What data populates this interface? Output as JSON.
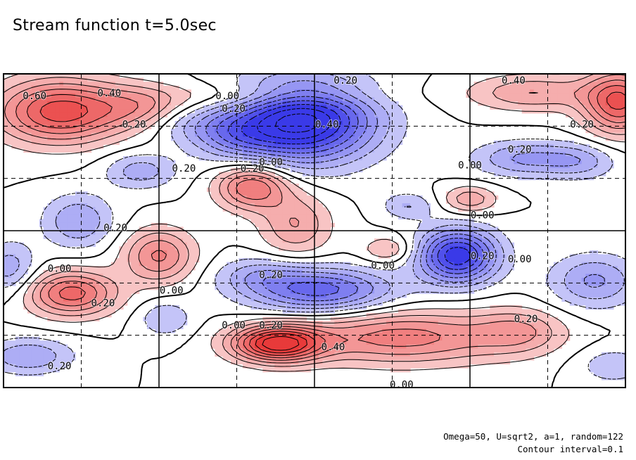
{
  "chart_data": {
    "type": "contour",
    "title": "Stream function t=5.0sec",
    "annotation": [
      "Omega=50, U=sqrt2, a=1, random=122",
      "Contour interval=0.1"
    ],
    "contour_interval": 0.1,
    "color_scheme": {
      "positive": "#e83a3a",
      "negative": "#3a3ae8",
      "zero": "#ffffff"
    },
    "negative_contour_style": "dashed",
    "grid": true,
    "vortices": [
      {
        "x": 0.09,
        "y": 0.12,
        "amp": 0.66,
        "sx": 0.07,
        "sy": 0.07
      },
      {
        "x": 0.22,
        "y": 0.11,
        "amp": 0.28,
        "sx": 0.05,
        "sy": 0.05
      },
      {
        "x": 0.99,
        "y": 0.09,
        "amp": 0.62,
        "sx": 0.04,
        "sy": 0.07
      },
      {
        "x": 0.85,
        "y": 0.06,
        "amp": 0.3,
        "sx": 0.07,
        "sy": 0.04
      },
      {
        "x": 0.42,
        "y": 0.07,
        "amp": 0.18,
        "sx": 0.12,
        "sy": 0.03
      },
      {
        "x": 0.48,
        "y": 0.15,
        "amp": -0.95,
        "sx": 0.08,
        "sy": 0.09
      },
      {
        "x": 0.37,
        "y": 0.2,
        "amp": -0.25,
        "sx": 0.05,
        "sy": 0.05
      },
      {
        "x": 0.84,
        "y": 0.27,
        "amp": -0.32,
        "sx": 0.06,
        "sy": 0.04
      },
      {
        "x": 0.93,
        "y": 0.28,
        "amp": -0.2,
        "sx": 0.04,
        "sy": 0.04
      },
      {
        "x": 0.22,
        "y": 0.31,
        "amp": -0.26,
        "sx": 0.04,
        "sy": 0.04
      },
      {
        "x": 0.12,
        "y": 0.47,
        "amp": -0.3,
        "sx": 0.04,
        "sy": 0.06
      },
      {
        "x": 0.4,
        "y": 0.36,
        "amp": 0.52,
        "sx": 0.04,
        "sy": 0.05
      },
      {
        "x": 0.47,
        "y": 0.48,
        "amp": 0.3,
        "sx": 0.04,
        "sy": 0.07
      },
      {
        "x": 0.25,
        "y": 0.58,
        "amp": 0.42,
        "sx": 0.04,
        "sy": 0.06
      },
      {
        "x": 0.11,
        "y": 0.7,
        "amp": 0.55,
        "sx": 0.05,
        "sy": 0.05
      },
      {
        "x": 0.65,
        "y": 0.42,
        "amp": -0.2,
        "sx": 0.03,
        "sy": 0.03
      },
      {
        "x": 0.73,
        "y": 0.58,
        "amp": -0.78,
        "sx": 0.045,
        "sy": 0.06
      },
      {
        "x": 0.51,
        "y": 0.69,
        "amp": -0.55,
        "sx": 0.08,
        "sy": 0.05
      },
      {
        "x": 0.41,
        "y": 0.64,
        "amp": -0.2,
        "sx": 0.05,
        "sy": 0.04
      },
      {
        "x": 0.62,
        "y": 0.56,
        "amp": 0.22,
        "sx": 0.03,
        "sy": 0.03
      },
      {
        "x": 0.75,
        "y": 0.4,
        "amp": 0.28,
        "sx": 0.03,
        "sy": 0.03
      },
      {
        "x": 0.95,
        "y": 0.66,
        "amp": -0.32,
        "sx": 0.05,
        "sy": 0.06
      },
      {
        "x": 0.01,
        "y": 0.62,
        "amp": -0.26,
        "sx": 0.03,
        "sy": 0.06
      },
      {
        "x": 0.26,
        "y": 0.78,
        "amp": -0.2,
        "sx": 0.03,
        "sy": 0.04
      },
      {
        "x": 0.04,
        "y": 0.9,
        "amp": -0.3,
        "sx": 0.05,
        "sy": 0.04
      },
      {
        "x": 0.44,
        "y": 0.86,
        "amp": 0.82,
        "sx": 0.05,
        "sy": 0.04
      },
      {
        "x": 0.64,
        "y": 0.84,
        "amp": 0.45,
        "sx": 0.12,
        "sy": 0.06
      },
      {
        "x": 0.83,
        "y": 0.82,
        "amp": 0.25,
        "sx": 0.05,
        "sy": 0.05
      },
      {
        "x": 0.98,
        "y": 0.93,
        "amp": -0.18,
        "sx": 0.04,
        "sy": 0.04
      },
      {
        "x": 0.3,
        "y": 0.16,
        "amp": -0.15,
        "sx": 0.06,
        "sy": 0.04
      }
    ],
    "contour_labels": [
      {
        "text": "0.60",
        "x": 0.05,
        "y": 0.07
      },
      {
        "text": "0.40",
        "x": 0.17,
        "y": 0.06
      },
      {
        "text": "0.20",
        "x": 0.21,
        "y": 0.16
      },
      {
        "text": "0.20",
        "x": 0.55,
        "y": 0.02
      },
      {
        "text": "0.00",
        "x": 0.36,
        "y": 0.07
      },
      {
        "text": "0.20",
        "x": 0.37,
        "y": 0.11
      },
      {
        "text": "0.40",
        "x": 0.52,
        "y": 0.16
      },
      {
        "text": "0.40",
        "x": 0.82,
        "y": 0.02
      },
      {
        "text": "0.20",
        "x": 0.93,
        "y": 0.16
      },
      {
        "text": "0.20",
        "x": 0.83,
        "y": 0.24
      },
      {
        "text": "0.00",
        "x": 0.75,
        "y": 0.29
      },
      {
        "text": "0.20",
        "x": 0.29,
        "y": 0.3
      },
      {
        "text": "0.20",
        "x": 0.4,
        "y": 0.3
      },
      {
        "text": "0.00",
        "x": 0.43,
        "y": 0.28
      },
      {
        "text": "0.20",
        "x": 0.18,
        "y": 0.49
      },
      {
        "text": "0.00",
        "x": 0.77,
        "y": 0.45
      },
      {
        "text": "0.00",
        "x": 0.09,
        "y": 0.62
      },
      {
        "text": "0.00",
        "x": 0.61,
        "y": 0.61
      },
      {
        "text": "0.20",
        "x": 0.77,
        "y": 0.58
      },
      {
        "text": "0.00",
        "x": 0.83,
        "y": 0.59
      },
      {
        "text": "0.20",
        "x": 0.43,
        "y": 0.64
      },
      {
        "text": "0.20",
        "x": 0.16,
        "y": 0.73
      },
      {
        "text": "0.00",
        "x": 0.27,
        "y": 0.69
      },
      {
        "text": "0.20",
        "x": 0.84,
        "y": 0.78
      },
      {
        "text": "0.00",
        "x": 0.37,
        "y": 0.8
      },
      {
        "text": "0.20",
        "x": 0.43,
        "y": 0.8
      },
      {
        "text": "0.40",
        "x": 0.53,
        "y": 0.87
      },
      {
        "text": "0.20",
        "x": 0.09,
        "y": 0.93
      },
      {
        "text": "0.00",
        "x": 0.64,
        "y": 0.99
      }
    ]
  }
}
